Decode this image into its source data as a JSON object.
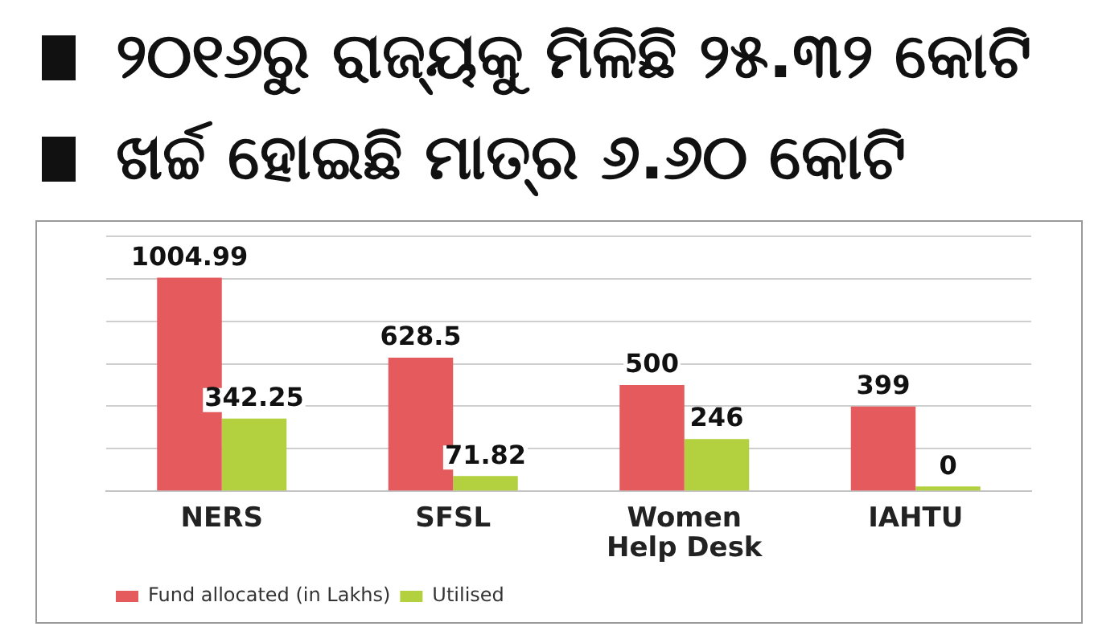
{
  "chart_data": {
    "type": "bar",
    "title": "୨୦୧୬ରୁ ରାଜ୍ୟକୁ ମିଳିଛି ୨୫.୩୨ କୋଟି",
    "subtitle": "ଖର୍ଚ୍ଚ ହୋଇଛି ମାତ୍ର ୬.୬୦ କୋଟି",
    "categories": [
      "NERS",
      "SFSL",
      "Women Help Desk",
      "IAHTU"
    ],
    "series": [
      {
        "name": "Fund allocated (in Lakhs)",
        "color": "#e55a5c",
        "values": [
          1004.99,
          628.5,
          500,
          399
        ]
      },
      {
        "name": "Utilised",
        "color": "#b3d13f",
        "values": [
          342.25,
          71.82,
          246,
          0
        ]
      }
    ],
    "ylim": [
      0,
      1200
    ],
    "yticks": [
      {
        "value": 0,
        "label": null
      },
      {
        "value": 200,
        "label": null
      },
      {
        "value": 400,
        "label": null
      },
      {
        "value": 600,
        "label": null
      },
      {
        "value": 800,
        "label": null
      },
      {
        "value": 1000,
        "label": null
      },
      {
        "value": 1200,
        "label": null
      }
    ],
    "tick_labels": "x",
    "grid": "y",
    "legend": "bottom left",
    "data_labels": true
  }
}
